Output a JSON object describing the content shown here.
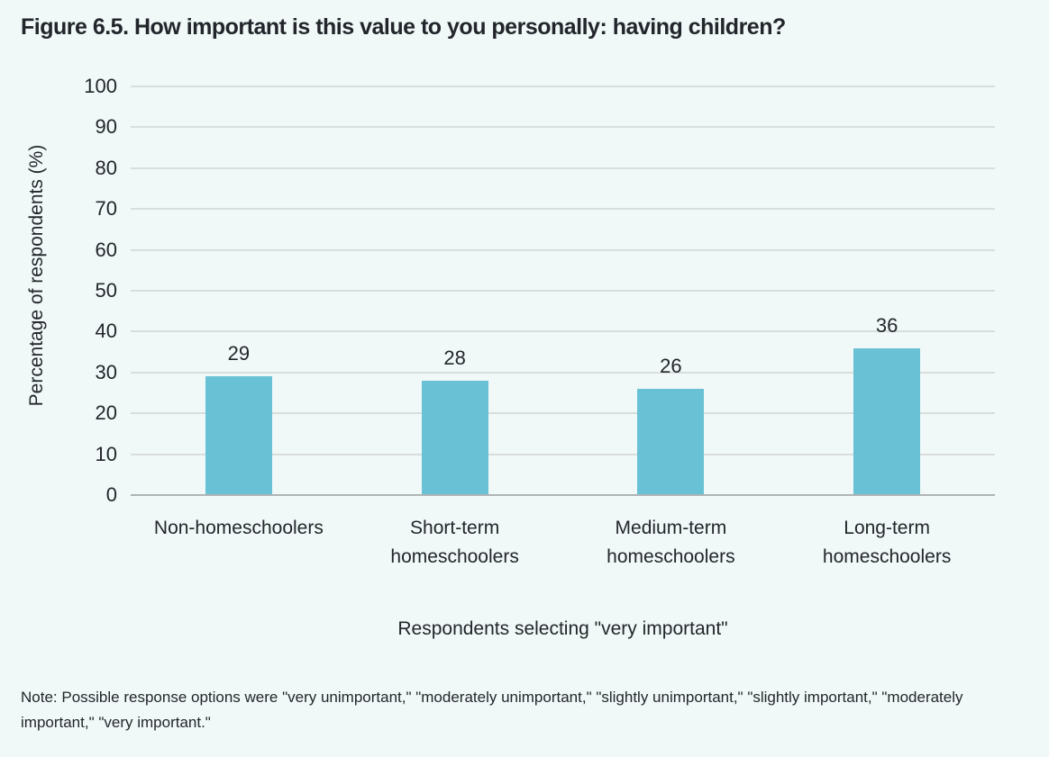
{
  "page": {
    "background_color": "#f0f9f7",
    "text_color": "#23262c"
  },
  "figure": {
    "title": "Figure 6.5. How important is this value to you personally: having children?",
    "note": "Note: Possible response options were \"very unimportant,\" \"moderately unimportant,\" \"slightly unimportant,\" \"slightly important,\" \"moderately important,\" \"very important.\""
  },
  "chart_data": {
    "type": "bar",
    "title": "Figure 6.5. How important is this value to you personally: having children?",
    "categories": [
      "Non-homeschoolers",
      "Short-term\nhomeschoolers",
      "Medium-term\nhomeschoolers",
      "Long-term\nhomeschoolers"
    ],
    "values": [
      29,
      28,
      26,
      36
    ],
    "xlabel": "Respondents selecting \"very important\"",
    "ylabel": "Percentage of respondents (%)",
    "ylim": [
      0,
      100
    ],
    "yticks": [
      0,
      10,
      20,
      30,
      40,
      50,
      60,
      70,
      80,
      90,
      100
    ],
    "grid": true,
    "legend_position": "none",
    "bar_color": "#69c1d6",
    "gridline_color": "#d9dedd",
    "zero_line_color": "#aeb5b4"
  }
}
